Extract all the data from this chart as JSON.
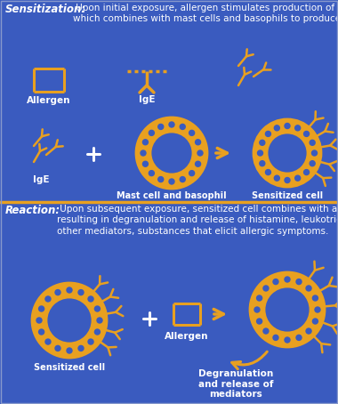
{
  "bg_color": "#3a5bbf",
  "divider_color": "#e8a020",
  "gold": "#e8a020",
  "white": "#ffffff",
  "title_top": "Sensitization:",
  "desc_top": " Upon initial exposure, allergen stimulates production of IgE,\nwhich combines with mast cells and basophils to produce a sensitized cell.",
  "title_bottom": "Reaction:",
  "desc_bottom": " Upon subsequent exposure, sensitized cell combines with allergen,\nresulting in degranulation and release of histamine, leukotrienes, prostaglandins, and\nother mediators, substances that elicit allergic symptoms.",
  "fig_width": 3.8,
  "fig_height": 4.54,
  "dpi": 100
}
